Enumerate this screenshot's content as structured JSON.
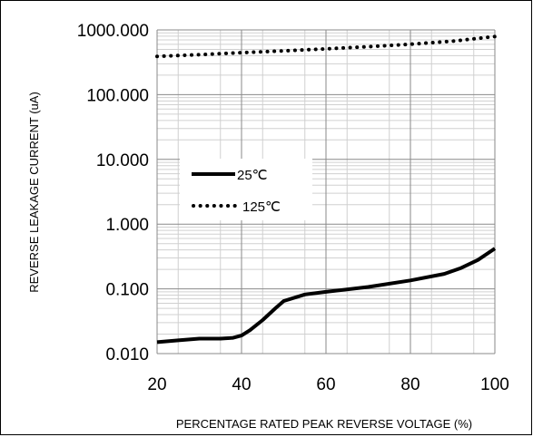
{
  "chart_data": {
    "type": "line",
    "title": "",
    "xlabel": "PERCENTAGE RATED PEAK REVERSE VOLTAGE (%)",
    "ylabel": "REVERSE LEAKAGE CURRENT (uA)",
    "xlim": [
      20,
      100
    ],
    "ylim": [
      0.01,
      1000
    ],
    "yscale": "log",
    "grid": true,
    "legend_position": "left-middle",
    "x_ticks": [
      "20",
      "40",
      "60",
      "80",
      "100"
    ],
    "y_ticks": [
      "0.010",
      "0.100",
      "1.000",
      "10.000",
      "100.000",
      "1000.000"
    ],
    "series": [
      {
        "name": "25℃",
        "style": "solid",
        "color": "#000000",
        "x": [
          20,
          25,
          30,
          35,
          38,
          40,
          42,
          45,
          48,
          50,
          55,
          60,
          70,
          80,
          88,
          92,
          96,
          100
        ],
        "y": [
          0.015,
          0.016,
          0.017,
          0.017,
          0.0175,
          0.019,
          0.023,
          0.033,
          0.05,
          0.065,
          0.082,
          0.09,
          0.107,
          0.135,
          0.17,
          0.21,
          0.28,
          0.42
        ]
      },
      {
        "name": "125℃",
        "style": "dotted",
        "color": "#000000",
        "x": [
          20,
          30,
          40,
          50,
          60,
          70,
          80,
          90,
          100
        ],
        "y": [
          390,
          415,
          445,
          475,
          510,
          550,
          600,
          670,
          790
        ]
      }
    ]
  }
}
